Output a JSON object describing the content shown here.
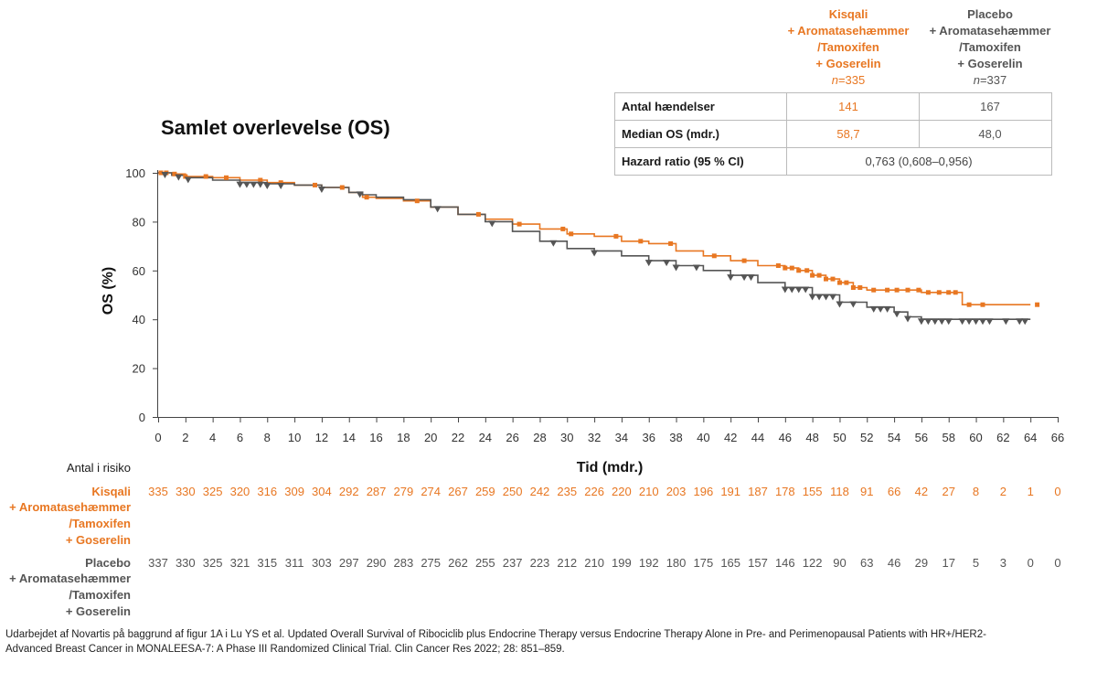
{
  "colors": {
    "orange": "#e87722",
    "gray": "#555555",
    "grid": "#bbbbbb"
  },
  "legend": {
    "orange": {
      "lines": [
        "Kisqali",
        "+ Aromatasehæmmer",
        "/Tamoxifen",
        "+ Goserelin"
      ],
      "n_prefix": "n",
      "n_value": "=335"
    },
    "gray": {
      "lines": [
        "Placebo",
        "+ Aromatasehæmmer",
        "/Tamoxifen",
        "+ Goserelin"
      ],
      "n_prefix": "n",
      "n_value": "=337"
    }
  },
  "stats_table": {
    "rows": [
      {
        "label": "Antal hændelser",
        "orange": "141",
        "gray": "167"
      },
      {
        "label": "Median OS (mdr.)",
        "orange": "58,7",
        "gray": "48,0"
      }
    ],
    "hr": {
      "label": "Hazard ratio (95 % CI)",
      "value": "0,763 (0,608–0,956)"
    }
  },
  "chart_data": {
    "type": "line",
    "title": "Samlet overlevelse (OS)",
    "xlabel": "Tid (mdr.)",
    "ylabel": "OS (%)",
    "xlim": [
      0,
      66
    ],
    "ylim": [
      0,
      100
    ],
    "xticks": [
      0,
      2,
      4,
      6,
      8,
      10,
      12,
      14,
      16,
      18,
      20,
      22,
      24,
      26,
      28,
      30,
      32,
      34,
      36,
      38,
      40,
      42,
      44,
      46,
      48,
      50,
      52,
      54,
      56,
      58,
      60,
      62,
      64,
      66
    ],
    "yticks": [
      0,
      20,
      40,
      60,
      80,
      100
    ],
    "series": [
      {
        "name": "Kisqali + Aromatasehæmmer /Tamoxifen + Goserelin",
        "color": "#e87722",
        "x": [
          0,
          1,
          2,
          4,
          6,
          8,
          10,
          12,
          14,
          15,
          16,
          18,
          20,
          22,
          24,
          26,
          28,
          30,
          32,
          34,
          36,
          38,
          40,
          42,
          44,
          46,
          47,
          48,
          49,
          50,
          51,
          52,
          54,
          56,
          58,
          58.8,
          59,
          60,
          62,
          64
        ],
        "y": [
          100,
          99.5,
          98.5,
          98,
          97,
          96,
          95,
          94,
          92,
          90,
          89.5,
          88.5,
          86,
          83,
          81,
          79,
          77,
          75,
          74,
          72,
          71,
          68,
          66,
          64,
          62,
          61,
          60,
          58,
          56.5,
          55,
          53,
          52,
          52,
          51,
          51,
          51,
          46,
          46,
          46,
          46
        ]
      },
      {
        "name": "Placebo + Aromatasehæmmer /Tamoxifen + Goserelin",
        "color": "#555555",
        "x": [
          0,
          1,
          2,
          4,
          6,
          8,
          10,
          12,
          14,
          15,
          16,
          18,
          20,
          22,
          24,
          26,
          28,
          30,
          32,
          34,
          36,
          38,
          40,
          42,
          44,
          46,
          48,
          50,
          52,
          54,
          55,
          56,
          58,
          60,
          62,
          64
        ],
        "y": [
          100,
          99,
          98,
          97,
          96,
          95.5,
          95,
          94,
          92,
          91,
          90,
          89,
          86,
          83,
          80,
          76,
          72,
          69,
          68,
          66,
          64,
          62,
          60,
          58,
          55,
          53,
          50,
          47,
          45,
          43,
          41,
          40,
          40,
          40,
          40,
          40
        ]
      }
    ],
    "censors": {
      "orange_x": [
        0.2,
        0.6,
        1.2,
        2,
        3.5,
        5,
        7.5,
        9,
        11.5,
        13.5,
        15.3,
        19,
        23.5,
        26.5,
        29.7,
        30.3,
        33.6,
        35.4,
        37.6,
        40.8,
        43,
        45.5,
        46,
        46.5,
        47,
        47.6,
        48,
        48.5,
        49,
        49.5,
        50,
        50.5,
        51,
        51.5,
        52.5,
        53.5,
        54.2,
        55,
        55.8,
        56.5,
        57.3,
        58,
        58.5,
        59.5,
        60.5,
        64.5
      ],
      "gray_x": [
        0.5,
        1.5,
        2.2,
        6,
        6.5,
        7,
        7.5,
        8,
        9,
        12,
        14.8,
        20.5,
        24.5,
        29,
        32,
        36,
        37.3,
        38,
        39.5,
        42,
        43,
        43.5,
        46,
        46.5,
        47,
        47.5,
        48,
        48.5,
        49,
        49.5,
        50,
        51,
        52.5,
        53,
        53.5,
        54.2,
        55,
        56,
        56.5,
        57,
        57.5,
        58,
        59,
        59.5,
        60,
        60.5,
        61,
        62.2,
        63.2,
        63.6
      ]
    },
    "risk_table": {
      "header": "Antal i risiko",
      "times": [
        0,
        2,
        4,
        6,
        8,
        10,
        12,
        14,
        16,
        18,
        20,
        22,
        24,
        26,
        28,
        30,
        32,
        34,
        36,
        38,
        40,
        42,
        44,
        46,
        48,
        50,
        52,
        54,
        56,
        58,
        60,
        62,
        64,
        66
      ],
      "orange": [
        335,
        330,
        325,
        320,
        316,
        309,
        304,
        292,
        287,
        279,
        274,
        267,
        259,
        250,
        242,
        235,
        226,
        220,
        210,
        203,
        196,
        191,
        187,
        178,
        155,
        118,
        91,
        66,
        42,
        27,
        8,
        2,
        1,
        0
      ],
      "gray": [
        337,
        330,
        325,
        321,
        315,
        311,
        303,
        297,
        290,
        283,
        275,
        262,
        255,
        237,
        223,
        212,
        210,
        199,
        192,
        180,
        175,
        165,
        157,
        146,
        122,
        90,
        63,
        46,
        29,
        17,
        5,
        3,
        0,
        0
      ]
    }
  },
  "footnote": "Udarbejdet af Novartis på baggrund af figur 1A i Lu YS et al. Updated Overall Survival of Ribociclib plus Endocrine Therapy versus Endocrine Therapy Alone in Pre- and Perimenopausal Patients with HR+/HER2- Advanced Breast Cancer in MONALEESA-7: A Phase III Randomized Clinical Trial. Clin Cancer Res 2022; 28: 851–859."
}
